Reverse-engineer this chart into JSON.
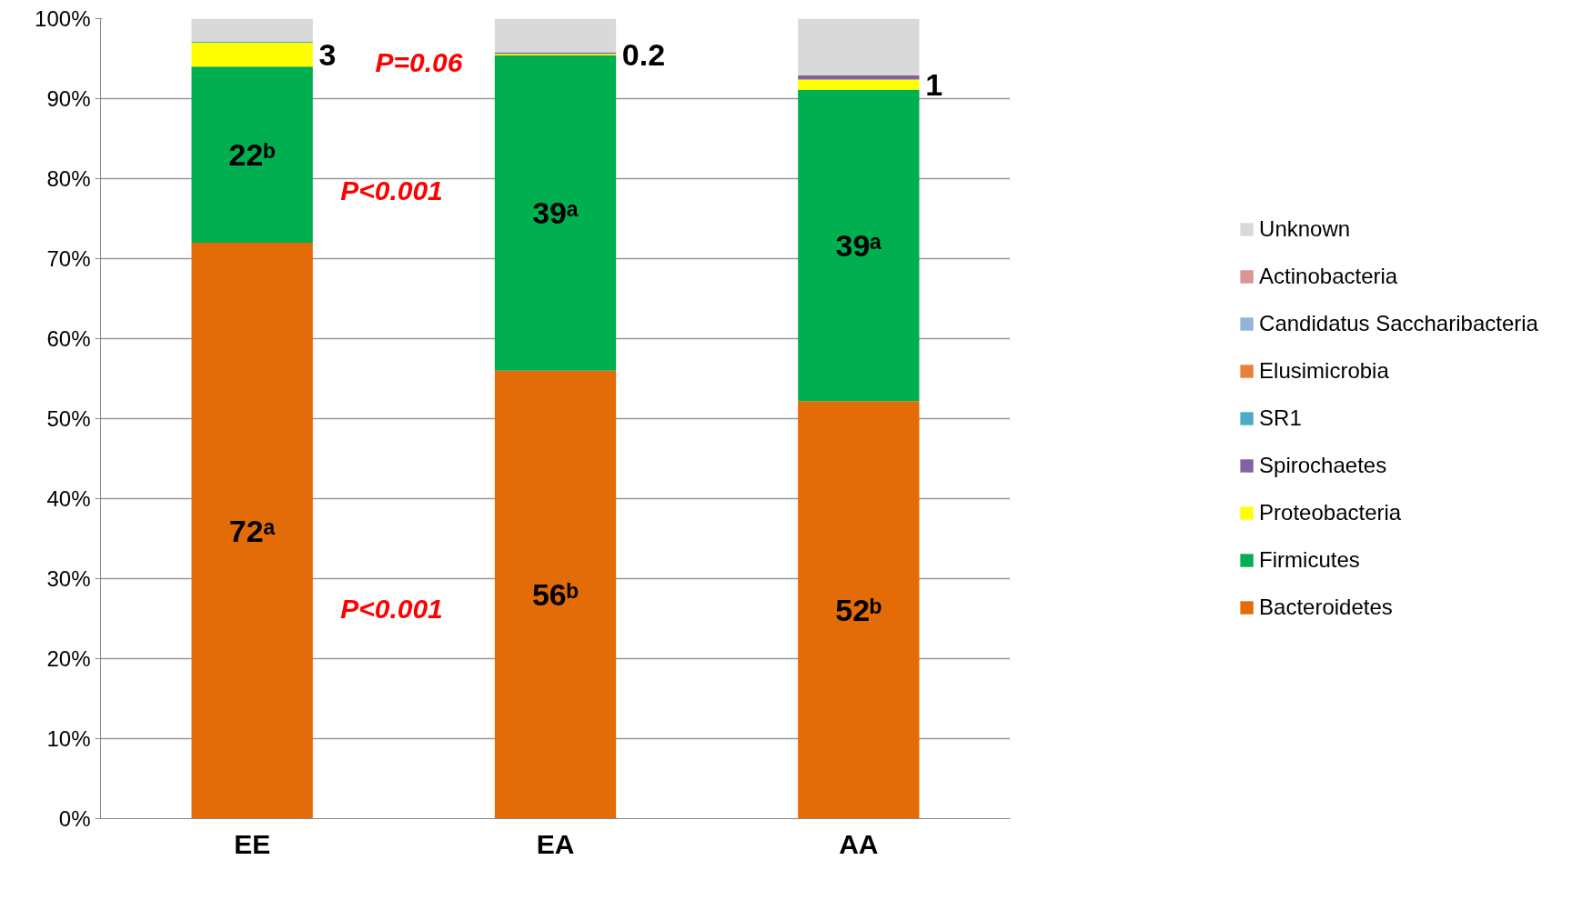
{
  "chart_data": {
    "type": "bar",
    "stacked": true,
    "categories": [
      "EE",
      "EA",
      "AA"
    ],
    "series": [
      {
        "name": "Bacteroidetes",
        "color": "#e36c09",
        "values": [
          72,
          56,
          52.2
        ],
        "value_labels": [
          "72ᵃ",
          "56ᵇ",
          "52ᵇ"
        ]
      },
      {
        "name": "Firmicutes",
        "color": "#00b050",
        "values": [
          22,
          39.4,
          38.9
        ],
        "value_labels": [
          "22ᵇ",
          "39ᵃ",
          "39ᵃ"
        ]
      },
      {
        "name": "Proteobacteria",
        "color": "#ffff00",
        "values": [
          3,
          0.2,
          1.3
        ],
        "value_labels": [
          "3",
          "0.2",
          "1"
        ]
      },
      {
        "name": "Spirochaetes",
        "color": "#8064a2",
        "values": [
          0,
          0.2,
          0.5
        ]
      },
      {
        "name": "SR1",
        "color": "#4bacc6",
        "values": [
          0.1,
          0,
          0
        ]
      },
      {
        "name": "Elusimicrobia",
        "color": "#e8803a",
        "values": [
          0,
          0,
          0
        ]
      },
      {
        "name": "Candidatus Saccharibacteria",
        "color": "#95b3d7",
        "values": [
          0,
          0,
          0
        ]
      },
      {
        "name": "Actinobacteria",
        "color": "#d99694",
        "values": [
          0,
          0,
          0
        ]
      },
      {
        "name": "Unknown",
        "color": "#d9d9d9",
        "values": [
          2.9,
          4.2,
          7.1
        ]
      }
    ],
    "ylim": [
      0,
      100
    ],
    "yticks": [
      {
        "value": 0,
        "label": "0%"
      },
      {
        "value": 10,
        "label": "10%"
      },
      {
        "value": 20,
        "label": "20%"
      },
      {
        "value": 30,
        "label": "30%"
      },
      {
        "value": 40,
        "label": "40%"
      },
      {
        "value": 50,
        "label": "50%"
      },
      {
        "value": 60,
        "label": "60%"
      },
      {
        "value": 70,
        "label": "70%"
      },
      {
        "value": 80,
        "label": "80%"
      },
      {
        "value": 90,
        "label": "90%"
      },
      {
        "value": 100,
        "label": "100%"
      }
    ],
    "grid": "y",
    "legend": "right",
    "annotations": [
      "P=0.06",
      "P<0.001",
      "P<0.001"
    ]
  }
}
